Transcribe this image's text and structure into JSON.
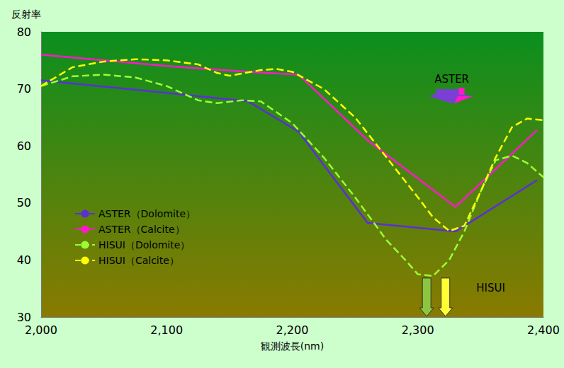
{
  "chart_data": {
    "type": "line",
    "xlabel": "観測波長(nm)",
    "ylabel": "反射率",
    "xlim": [
      2000,
      2400
    ],
    "xticks": [
      2000,
      2100,
      2200,
      2300,
      2400
    ],
    "ylim": [
      30,
      80
    ],
    "yticks": [
      30,
      40,
      50,
      60,
      70,
      80
    ],
    "grid": false,
    "legend": "lower left",
    "series": [
      {
        "name": "ASTER（Dolomite）",
        "color": "#5b2fd6",
        "line_style": "solid",
        "x": [
          2000,
          2100,
          2165,
          2205,
          2260,
          2330,
          2395
        ],
        "values": [
          71.5,
          69.3,
          67.8,
          62.5,
          46.5,
          45.0,
          54.0
        ]
      },
      {
        "name": "ASTER（Calcite）",
        "color": "#ff19c8",
        "line_style": "solid",
        "x": [
          2000,
          2100,
          2165,
          2205,
          2260,
          2330,
          2395
        ],
        "values": [
          76.0,
          74.0,
          73.0,
          72.5,
          61.0,
          49.3,
          62.8
        ]
      },
      {
        "name": "HISUI（Dolomite）",
        "color": "#99ff33",
        "line_style": "dashed",
        "x": [
          2000,
          2025,
          2050,
          2075,
          2100,
          2125,
          2140,
          2160,
          2175,
          2200,
          2225,
          2250,
          2275,
          2290,
          2300,
          2312,
          2325,
          2337,
          2350,
          2362,
          2375,
          2387,
          2400
        ],
        "values": [
          70.5,
          72.2,
          72.5,
          72.0,
          70.5,
          68.0,
          67.5,
          68.0,
          67.8,
          64.0,
          58.0,
          51.0,
          43.5,
          40.0,
          37.5,
          37.2,
          40.0,
          45.0,
          52.0,
          57.5,
          58.3,
          57.0,
          54.5
        ]
      },
      {
        "name": "HISUI（Calcite）",
        "color": "#ffff00",
        "line_style": "dashed",
        "x": [
          2000,
          2025,
          2050,
          2075,
          2100,
          2125,
          2140,
          2150,
          2175,
          2187,
          2200,
          2225,
          2250,
          2275,
          2300,
          2312,
          2325,
          2337,
          2350,
          2362,
          2375,
          2387,
          2400
        ],
        "values": [
          70.5,
          73.8,
          74.8,
          75.2,
          75.0,
          74.3,
          72.8,
          72.3,
          73.3,
          73.5,
          73.0,
          70.0,
          65.0,
          58.0,
          51.0,
          47.5,
          45.1,
          46.0,
          52.0,
          58.0,
          63.3,
          64.8,
          64.5
        ]
      }
    ],
    "annotations": [
      {
        "text": "ASTER",
        "x": 2327,
        "y": 71.7
      },
      {
        "text": "HISUI",
        "x": 2358,
        "y": 35.1,
        "arrows": [
          {
            "x": 2307,
            "color": "#8cc63f"
          },
          {
            "x": 2322,
            "color": "#ffff33"
          }
        ]
      }
    ]
  }
}
